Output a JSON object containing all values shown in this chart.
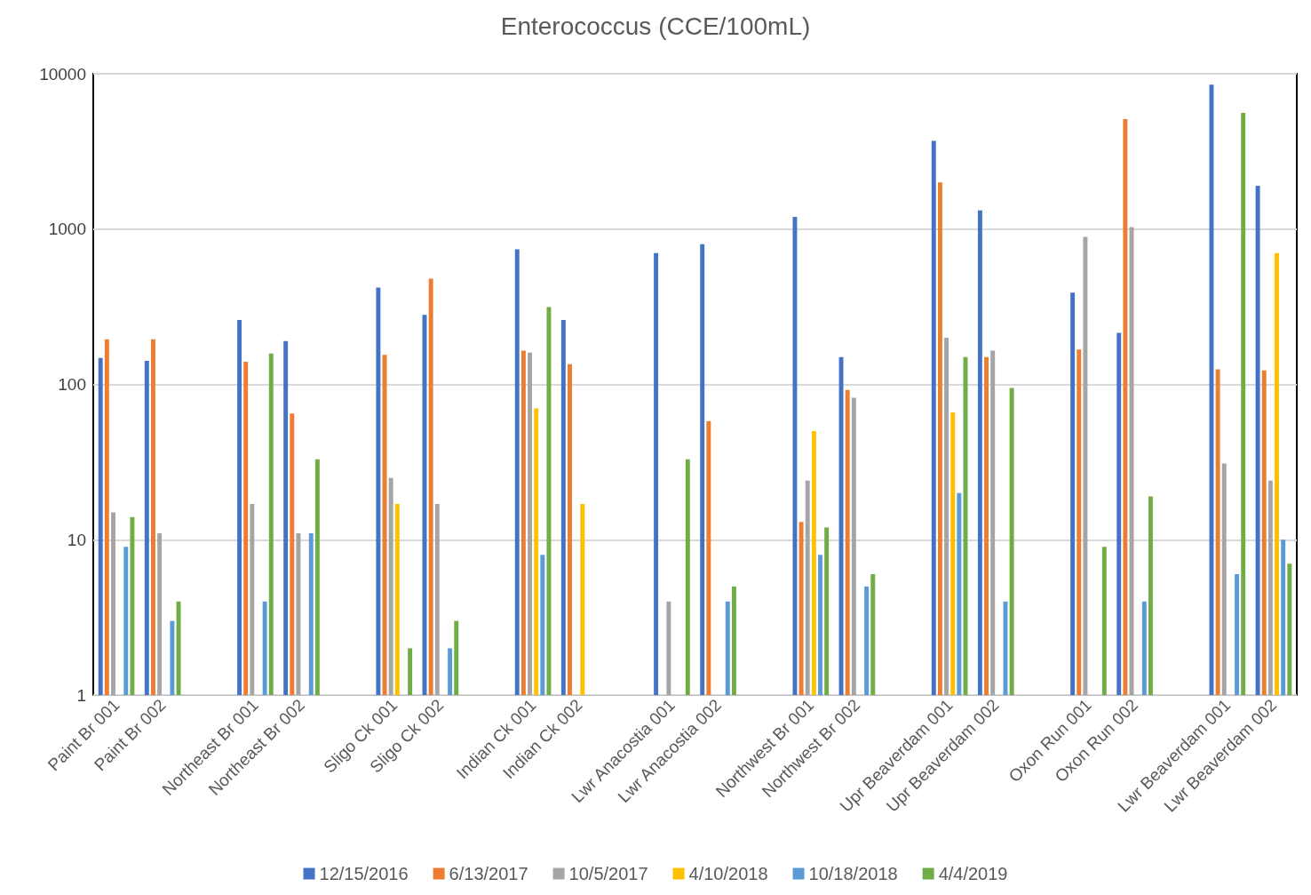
{
  "chart_data": {
    "type": "bar",
    "title": "Enterococcus (CCE/100mL)",
    "categories": [
      "Paint Br 001",
      "Paint Br 002",
      null,
      "Northeast Br 001",
      "Northeast Br 002",
      null,
      "Sligo Ck 001",
      "Sligo Ck 002",
      null,
      "Indian Ck 001",
      "Indian Ck 002",
      null,
      "Lwr Anacostia 001",
      "Lwr Anacostia 002",
      null,
      "Northwest Br 001",
      "Northwest Br 002",
      null,
      "Upr Beaverdam 001",
      "Upr Beaverdam 002",
      null,
      "Oxon Run 001",
      "Oxon Run 002",
      null,
      "Lwr Beaverdam 001",
      "Lwr Beaverdam 002"
    ],
    "series": [
      {
        "name": "12/15/2016",
        "color": "#4472c4",
        "values": [
          148,
          142,
          null,
          260,
          190,
          null,
          420,
          280,
          null,
          740,
          260,
          null,
          700,
          800,
          null,
          1200,
          150,
          null,
          3700,
          1320,
          null,
          390,
          215,
          null,
          8500,
          1900
        ]
      },
      {
        "name": "6/13/2017",
        "color": "#ed7d31",
        "values": [
          195,
          195,
          null,
          140,
          65,
          null,
          155,
          480,
          null,
          165,
          135,
          null,
          null,
          58,
          null,
          13,
          92,
          null,
          2000,
          150,
          null,
          168,
          5100,
          null,
          125,
          123
        ]
      },
      {
        "name": "10/5/2017",
        "color": "#a5a5a5",
        "values": [
          15,
          11,
          null,
          17,
          11,
          null,
          25,
          17,
          null,
          160,
          null,
          null,
          4,
          null,
          null,
          24,
          82,
          null,
          200,
          165,
          null,
          890,
          1030,
          null,
          31,
          24
        ]
      },
      {
        "name": "4/10/2018",
        "color": "#ffc000",
        "values": [
          null,
          null,
          null,
          null,
          null,
          null,
          17,
          null,
          null,
          70,
          17,
          null,
          null,
          null,
          null,
          50,
          null,
          null,
          66,
          null,
          null,
          null,
          null,
          null,
          null,
          700
        ]
      },
      {
        "name": "10/18/2018",
        "color": "#5b9bd5",
        "values": [
          9,
          3,
          null,
          4,
          11,
          null,
          null,
          2,
          null,
          8,
          null,
          null,
          null,
          4,
          null,
          8,
          5,
          null,
          20,
          4,
          null,
          null,
          4,
          null,
          6,
          10
        ]
      },
      {
        "name": "4/4/2019",
        "color": "#70ad47",
        "values": [
          14,
          4,
          null,
          158,
          33,
          null,
          2,
          3,
          null,
          315,
          null,
          null,
          33,
          5,
          null,
          12,
          6,
          null,
          150,
          95,
          null,
          9,
          19,
          null,
          5600,
          7
        ]
      }
    ],
    "log": true,
    "ylim": [
      1,
      10000
    ],
    "yticks": [
      1,
      10,
      100,
      1000,
      10000
    ],
    "grid": "y",
    "legend": "bottom"
  }
}
